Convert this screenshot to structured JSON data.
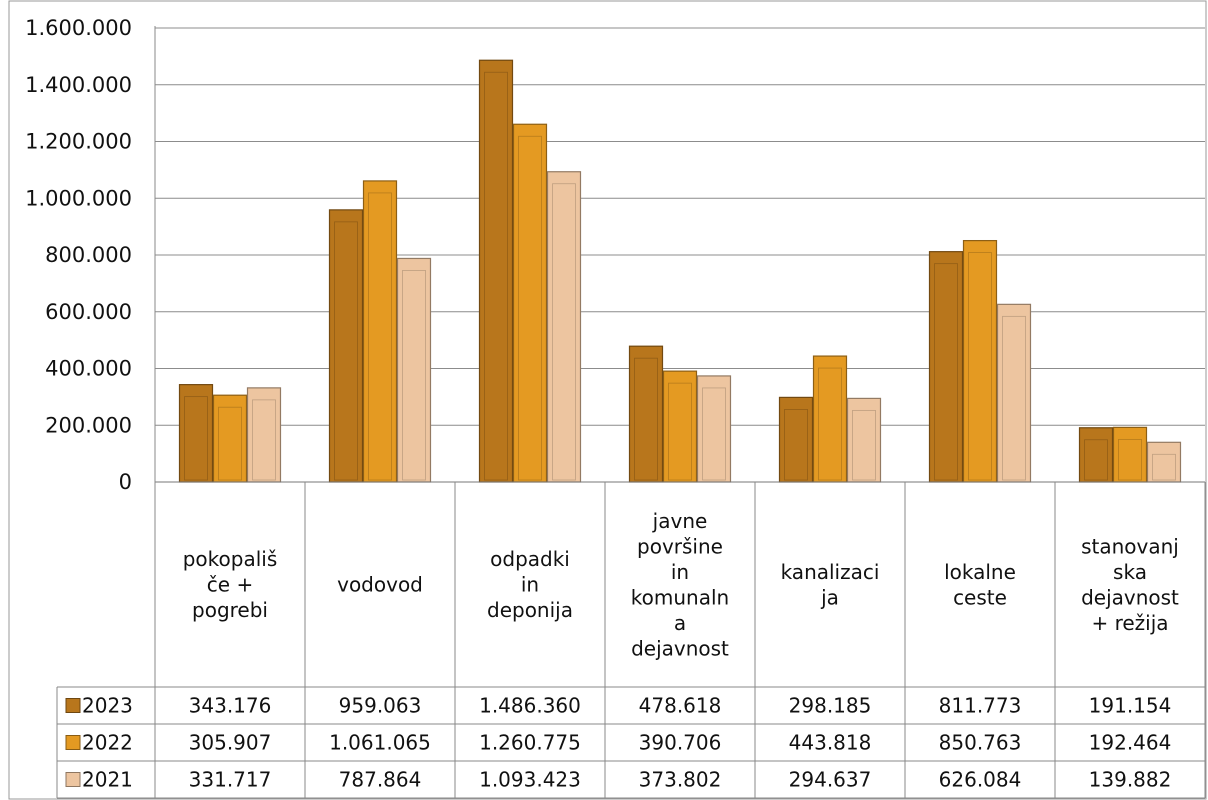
{
  "chart_data": {
    "type": "bar",
    "categories": [
      [
        "pokopališ",
        "če +",
        "pogrebi"
      ],
      [
        "vodovod"
      ],
      [
        "odpadki",
        "in",
        "deponija"
      ],
      [
        "javne",
        "površine",
        "in",
        "komunaln",
        "a",
        "dejavnost"
      ],
      [
        "kanalizaci",
        "ja"
      ],
      [
        "lokalne",
        "ceste"
      ],
      [
        "stanovanj",
        "ska",
        "dejavnost",
        "+  režija"
      ]
    ],
    "series": [
      {
        "name": "2023",
        "color": "#B8761C",
        "values": [
          343176,
          959063,
          1486360,
          478618,
          298185,
          811773,
          191154
        ],
        "labels": [
          "343.176",
          "959.063",
          "1.486.360",
          "478.618",
          "298.185",
          "811.773",
          "191.154"
        ]
      },
      {
        "name": "2022",
        "color": "#E49A22",
        "values": [
          305907,
          1061065,
          1260775,
          390706,
          443818,
          850763,
          192464
        ],
        "labels": [
          "305.907",
          "1.061.065",
          "1.260.775",
          "390.706",
          "443.818",
          "850.763",
          "192.464"
        ]
      },
      {
        "name": "2021",
        "color": "#EDC5A0",
        "values": [
          331717,
          787864,
          1093423,
          373802,
          294637,
          626084,
          139882
        ],
        "labels": [
          "331.717",
          "787.864",
          "1.093.423",
          "373.802",
          "294.637",
          "626.084",
          "139.882"
        ]
      }
    ],
    "ylim": [
      0,
      1600000
    ],
    "yticks": [
      0,
      200000,
      400000,
      600000,
      800000,
      1000000,
      1200000,
      1400000,
      1600000
    ],
    "ytick_labels": [
      "0",
      "200.000",
      "400.000",
      "600.000",
      "800.000",
      "1.000.000",
      "1.200.000",
      "1.400.000",
      "1.600.000"
    ],
    "grid": true,
    "legend": "data-table"
  }
}
